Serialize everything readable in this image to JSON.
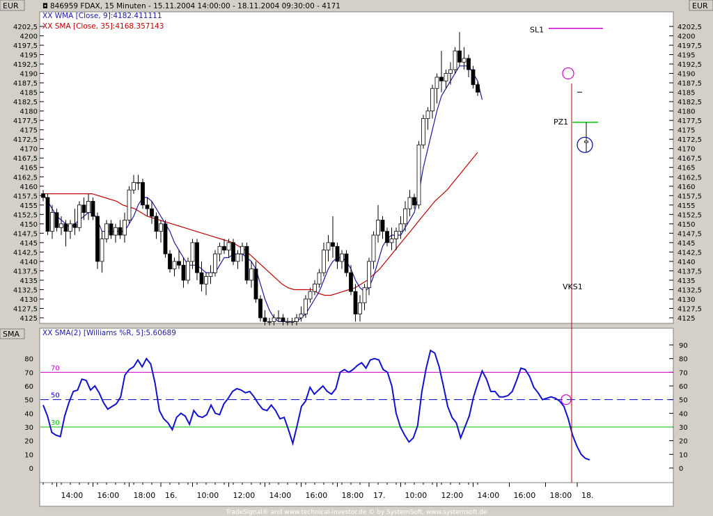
{
  "header": {
    "currency_left": "EUR",
    "currency_right": "EUR",
    "title": "846959  FDAX, 15 Minuten - 15.11.2004 14:00:00 - 18.11.2004 09:30:00 - 4171",
    "legend_wma": "XX WMA [Close, 9]:4182.411111",
    "legend_sma": "XX SMA [Close, 35]:4168.357143"
  },
  "indicator_panel": {
    "name": "SMA",
    "legend": "XX SMA(2) [Williams %R, 5]:5.60689"
  },
  "footer": {
    "credit": "TradeSignal® and www.technical-investor.de © by SystemSoft, www.systemsoft.de"
  },
  "colors": {
    "panel_bg": "#ffffff",
    "frame_bg": "#d4d0c8",
    "wma": "#1a1aa8",
    "sma": "#c00000",
    "indicator": "#1010d0",
    "level_70": "#cc00cc",
    "level_50": "#0000c0",
    "level_30": "#00c000",
    "sl": "#cc00cc",
    "pz": "#00cc00",
    "vks": "#b00000"
  },
  "chart_data": [
    {
      "type": "candlestick",
      "title": "846959  FDAX, 15 Minuten - 15.11.2004 14:00:00 - 18.11.2004 09:30:00 - 4171",
      "y_tick_labels": [
        "4202,5",
        "4200",
        "4197,5",
        "4195",
        "4192,5",
        "4190",
        "4187,5",
        "4185",
        "4182,5",
        "4180",
        "4177,5",
        "4175",
        "4172,5",
        "4170",
        "4167,5",
        "4165",
        "4162,5",
        "4160",
        "4157,5",
        "4155",
        "4152,5",
        "4150",
        "4147,5",
        "4145",
        "4142,5",
        "4140",
        "4137,5",
        "4135",
        "4132,5",
        "4130",
        "4127,5",
        "4125"
      ],
      "ylim": [
        4123,
        4204
      ],
      "x_tick_labels": [
        "14:00",
        "16:00",
        "18:00",
        "16.",
        "10:00",
        "12:00",
        "14:00",
        "16:00",
        "18:00",
        "17.",
        "10:00",
        "12:00",
        "14:00",
        "16:00",
        "18:00",
        "18."
      ],
      "x_tick_bar_index": [
        3,
        11,
        19,
        26,
        33,
        41,
        49,
        57,
        65,
        72,
        79,
        87,
        95,
        103,
        111,
        118
      ],
      "candles": [
        [
          4158,
          4159,
          4156,
          4157
        ],
        [
          4157,
          4158,
          4147,
          4148
        ],
        [
          4148,
          4155,
          4146,
          4153
        ],
        [
          4153,
          4154,
          4148,
          4149
        ],
        [
          4149,
          4152,
          4147,
          4150
        ],
        [
          4150,
          4151,
          4144,
          4148
        ],
        [
          4148,
          4151,
          4146,
          4150
        ],
        [
          4150,
          4154,
          4147,
          4149
        ],
        [
          4149,
          4156,
          4148,
          4155
        ],
        [
          4155,
          4157,
          4151,
          4153
        ],
        [
          4153,
          4158,
          4151,
          4156
        ],
        [
          4156,
          4157,
          4151,
          4152
        ],
        [
          4152,
          4153,
          4138,
          4140
        ],
        [
          4140,
          4148,
          4137,
          4146
        ],
        [
          4146,
          4151,
          4145,
          4150
        ],
        [
          4150,
          4151,
          4146,
          4147
        ],
        [
          4147,
          4150,
          4145,
          4149
        ],
        [
          4149,
          4151,
          4146,
          4147
        ],
        [
          4147,
          4153,
          4145,
          4151
        ],
        [
          4151,
          4160,
          4150,
          4159
        ],
        [
          4159,
          4163,
          4158,
          4161
        ],
        [
          4161,
          4163,
          4159,
          4161
        ],
        [
          4161,
          4162,
          4154,
          4155
        ],
        [
          4155,
          4157,
          4152,
          4154
        ],
        [
          4154,
          4156,
          4150,
          4152
        ],
        [
          4152,
          4153,
          4146,
          4148
        ],
        [
          4148,
          4151,
          4145,
          4150
        ],
        [
          4150,
          4151,
          4141,
          4142
        ],
        [
          4142,
          4143,
          4137,
          4138
        ],
        [
          4138,
          4141,
          4136,
          4140
        ],
        [
          4140,
          4143,
          4138,
          4139
        ],
        [
          4139,
          4141,
          4133,
          4135
        ],
        [
          4135,
          4141,
          4134,
          4140
        ],
        [
          4140,
          4146,
          4138,
          4145
        ],
        [
          4145,
          4146,
          4135,
          4137
        ],
        [
          4137,
          4140,
          4132,
          4134
        ],
        [
          4134,
          4137,
          4131,
          4136
        ],
        [
          4136,
          4139,
          4134,
          4137
        ],
        [
          4137,
          4143,
          4136,
          4142
        ],
        [
          4142,
          4145,
          4140,
          4144
        ],
        [
          4144,
          4146,
          4142,
          4143
        ],
        [
          4143,
          4146,
          4141,
          4145
        ],
        [
          4145,
          4146,
          4139,
          4140
        ],
        [
          4140,
          4143,
          4138,
          4142
        ],
        [
          4142,
          4145,
          4140,
          4144
        ],
        [
          4144,
          4145,
          4134,
          4135
        ],
        [
          4135,
          4140,
          4133,
          4138
        ],
        [
          4138,
          4140,
          4129,
          4130
        ],
        [
          4130,
          4131,
          4124,
          4125
        ],
        [
          4125,
          4127,
          4123,
          4124
        ],
        [
          4124,
          4125,
          4123,
          4124
        ],
        [
          4124,
          4126,
          4123,
          4125
        ],
        [
          4125,
          4127,
          4124,
          4125
        ],
        [
          4125,
          4126,
          4123,
          4124
        ],
        [
          4124,
          4125,
          4123,
          4124
        ],
        [
          4124,
          4125,
          4123,
          4124
        ],
        [
          4124,
          4126,
          4123,
          4125
        ],
        [
          4125,
          4128,
          4124,
          4126
        ],
        [
          4126,
          4131,
          4125,
          4130
        ],
        [
          4130,
          4133,
          4129,
          4132
        ],
        [
          4132,
          4135,
          4131,
          4134
        ],
        [
          4134,
          4138,
          4133,
          4137
        ],
        [
          4137,
          4145,
          4136,
          4143
        ],
        [
          4143,
          4147,
          4140,
          4145
        ],
        [
          4145,
          4152,
          4141,
          4144
        ],
        [
          4144,
          4145,
          4138,
          4140
        ],
        [
          4140,
          4143,
          4138,
          4142
        ],
        [
          4142,
          4143,
          4136,
          4137
        ],
        [
          4137,
          4139,
          4131,
          4132
        ],
        [
          4132,
          4134,
          4124,
          4126
        ],
        [
          4126,
          4131,
          4124,
          4129
        ],
        [
          4129,
          4134,
          4127,
          4133
        ],
        [
          4133,
          4141,
          4131,
          4140
        ],
        [
          4140,
          4148,
          4138,
          4147
        ],
        [
          4147,
          4155,
          4145,
          4151
        ],
        [
          4151,
          4152,
          4146,
          4148
        ],
        [
          4148,
          4149,
          4144,
          4145
        ],
        [
          4145,
          4149,
          4143,
          4146
        ],
        [
          4146,
          4149,
          4143,
          4148
        ],
        [
          4148,
          4152,
          4146,
          4150
        ],
        [
          4150,
          4156,
          4148,
          4154
        ],
        [
          4154,
          4159,
          4152,
          4157
        ],
        [
          4157,
          4158,
          4154,
          4155
        ],
        [
          4155,
          4172,
          4154,
          4171
        ],
        [
          4171,
          4179,
          4170,
          4178
        ],
        [
          4178,
          4181,
          4175,
          4180
        ],
        [
          4180,
          4187,
          4178,
          4186
        ],
        [
          4186,
          4190,
          4182,
          4189
        ],
        [
          4189,
          4196,
          4185,
          4188
        ],
        [
          4188,
          4191,
          4186,
          4190
        ],
        [
          4190,
          4193,
          4187,
          4191
        ],
        [
          4191,
          4197,
          4190,
          4196
        ],
        [
          4196,
          4201,
          4192,
          4193
        ],
        [
          4193,
          4197,
          4191,
          4194
        ],
        [
          4194,
          4195,
          4189,
          4191
        ],
        [
          4191,
          4192,
          4186,
          4187
        ],
        [
          4187,
          4188,
          4184,
          4185
        ]
      ],
      "series": [
        {
          "name": "WMA [Close, 9]",
          "last_value": 4182.411111
        },
        {
          "name": "SMA [Close, 35]",
          "last_value": 4168.357143
        }
      ],
      "wma_values": [
        4158,
        4156,
        4154,
        4152,
        4151,
        4150,
        4149,
        4150,
        4151,
        4152,
        4153,
        4153,
        4151,
        4148,
        4148,
        4148,
        4148,
        4148,
        4148,
        4150,
        4152,
        4155,
        4157,
        4157,
        4156,
        4154,
        4152,
        4150,
        4148,
        4145,
        4143,
        4141,
        4139,
        4139,
        4139,
        4138,
        4137,
        4137,
        4137,
        4139,
        4141,
        4141,
        4142,
        4142,
        4142,
        4141,
        4140,
        4138,
        4134,
        4130,
        4127,
        4125,
        4124,
        4124,
        4124,
        4124,
        4124,
        4125,
        4126,
        4128,
        4130,
        4132,
        4135,
        4138,
        4140,
        4141,
        4141,
        4140,
        4138,
        4135,
        4133,
        4132,
        4133,
        4136,
        4140,
        4144,
        4146,
        4147,
        4147,
        4147,
        4149,
        4151,
        4153,
        4158,
        4165,
        4170,
        4175,
        4180,
        4184,
        4186,
        4188,
        4190,
        4192,
        4192,
        4192,
        4190,
        4188,
        4183
      ],
      "sma_values": [
        4158,
        4158,
        4158,
        4158,
        4158,
        4158,
        4158,
        4158,
        4158,
        4157.5,
        4157,
        4156.5,
        4156,
        4155,
        4154.5,
        4154,
        4153,
        4152,
        4151.5,
        4151,
        4150.5,
        4150,
        4149.5,
        4149,
        4148.5,
        4148,
        4147.5,
        4147,
        4146.5,
        4146,
        4145.5,
        4145,
        4144,
        4143,
        4141.5,
        4140,
        4138.5,
        4137,
        4135.5,
        4134,
        4133,
        4132.5,
        4132.5,
        4132.5,
        4132.5,
        4131.5,
        4131,
        4131,
        4131.5,
        4132,
        4132.5,
        4133,
        4134,
        4135,
        4136.5,
        4138,
        4140,
        4142,
        4144,
        4146,
        4148,
        4150,
        4152,
        4154,
        4156,
        4157.5,
        4159,
        4161,
        4163,
        4165,
        4167,
        4169
      ],
      "annotations": [
        {
          "label": "SL1",
          "value": 4202
        },
        {
          "label": "PZ1",
          "value": 4177
        },
        {
          "label": "VKS1"
        }
      ]
    },
    {
      "type": "line",
      "title": "XX SMA(2) [Williams %R, 5]:5.60689",
      "y_tick_labels": [
        "90",
        "80",
        "70",
        "60",
        "50",
        "40",
        "30",
        "20",
        "10",
        "0"
      ],
      "left_tick_labels": [
        "80",
        "70",
        "60",
        "50",
        "40",
        "30",
        "20",
        "10",
        "0"
      ],
      "ylim": [
        -5,
        95
      ],
      "levels": [
        {
          "label": "70",
          "value": 70
        },
        {
          "label": "50",
          "value": 50
        },
        {
          "label": "30",
          "value": 30
        }
      ],
      "series": [
        {
          "name": "SMA(2) [Williams %R, 5]",
          "last_value": 5.60689,
          "values": [
            46,
            38,
            26,
            24,
            23,
            38,
            48,
            56,
            57,
            65,
            64,
            57,
            60,
            55,
            48,
            43,
            45,
            47,
            52,
            68,
            72,
            74,
            79,
            74,
            80,
            76,
            62,
            42,
            36,
            33,
            28,
            37,
            40,
            38,
            32,
            42,
            38,
            37,
            39,
            46,
            40,
            39,
            47,
            51,
            56,
            58,
            57,
            55,
            56,
            52,
            47,
            43,
            42,
            46,
            42,
            36,
            37,
            28,
            18,
            31,
            45,
            49,
            59,
            54,
            57,
            60,
            56,
            54,
            58,
            70,
            72,
            70,
            72,
            75,
            77,
            73,
            79,
            80,
            79,
            72,
            70,
            60,
            40,
            30,
            24,
            19,
            22,
            31,
            56,
            73,
            86,
            84,
            74,
            60,
            45,
            37,
            33,
            22,
            30,
            38,
            52,
            62,
            71,
            65,
            56,
            56,
            52,
            52,
            53,
            56,
            64,
            73,
            72,
            67,
            59,
            55,
            50,
            51,
            52,
            51,
            49,
            45,
            36,
            24,
            16,
            10,
            7,
            6
          ]
        }
      ]
    }
  ]
}
